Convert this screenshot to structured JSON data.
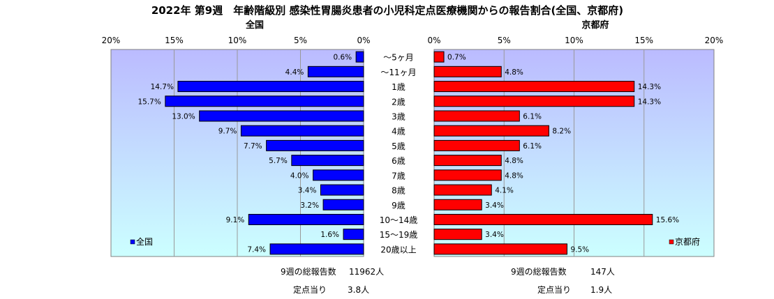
{
  "chart_data": {
    "type": "bar",
    "title": "2022年 第9週　年齢階級別 感染性胃腸炎患者の小児科定点医療機関からの報告割合(全国、京都府)",
    "categories": [
      "～5ヶ月",
      "～11ヶ月",
      "1歳",
      "2歳",
      "3歳",
      "4歳",
      "5歳",
      "6歳",
      "7歳",
      "8歳",
      "9歳",
      "10～14歳",
      "15～19歳",
      "20歳以上"
    ],
    "series": [
      {
        "name": "全国",
        "color": "#0000ff",
        "values": [
          0.6,
          4.4,
          14.7,
          15.7,
          13.0,
          9.7,
          7.7,
          5.7,
          4.0,
          3.4,
          3.2,
          9.1,
          1.6,
          7.4
        ],
        "labels": [
          "0.6%",
          "4.4%",
          "14.7%",
          "15.7%",
          "13.0%",
          "9.7%",
          "7.7%",
          "5.7%",
          "4.0%",
          "3.4%",
          "3.2%",
          "9.1%",
          "1.6%",
          "7.4%"
        ]
      },
      {
        "name": "京都府",
        "color": "#ff0000",
        "values": [
          0.7,
          4.8,
          14.3,
          14.3,
          6.1,
          8.2,
          6.1,
          4.8,
          4.8,
          4.1,
          3.4,
          15.6,
          3.4,
          9.5
        ],
        "labels": [
          "0.7%",
          "4.8%",
          "14.3%",
          "14.3%",
          "6.1%",
          "8.2%",
          "6.1%",
          "4.8%",
          "4.8%",
          "4.1%",
          "3.4%",
          "15.6%",
          "3.4%",
          "9.5%"
        ]
      }
    ],
    "panel_titles": [
      "全国",
      "京都府"
    ],
    "xlim": [
      0,
      20
    ],
    "left_ticks": [
      "20%",
      "15%",
      "10%",
      "5%",
      "0%"
    ],
    "right_ticks": [
      "0%",
      "5%",
      "10%",
      "15%",
      "20%"
    ],
    "grid": true,
    "legend_placement": "bottom-inside",
    "plot_background": [
      "#bbbbff",
      "#ccffff"
    ]
  },
  "footer": {
    "national_total_label": "9週の総報告数",
    "national_total_value": "11962人",
    "national_per_label": "定点当り",
    "national_per_value": "3.8人",
    "kyoto_total_label": "9週の総報告数",
    "kyoto_total_value": "147人",
    "kyoto_per_label": "定点当り",
    "kyoto_per_value": "1.9人"
  }
}
